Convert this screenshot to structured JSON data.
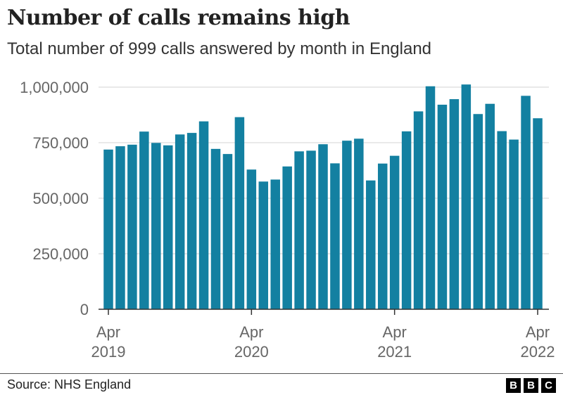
{
  "chart_data": {
    "type": "bar",
    "title": "Number of calls remains high",
    "subtitle": "Total number of 999 calls answered by month in England",
    "xlabel": "",
    "ylabel": "",
    "ylim": [
      0,
      1000000
    ],
    "yticks": [
      0,
      250000,
      500000,
      750000,
      1000000
    ],
    "ytick_labels": [
      "0",
      "250,000",
      "500,000",
      "750,000",
      "1,000,000"
    ],
    "grid": true,
    "bar_color": "#1380a1",
    "xticks": [
      {
        "index": 0,
        "month": "Apr",
        "year": "2019"
      },
      {
        "index": 12,
        "month": "Apr",
        "year": "2020"
      },
      {
        "index": 24,
        "month": "Apr",
        "year": "2021"
      },
      {
        "index": 36,
        "month": "Apr",
        "year": "2022"
      }
    ],
    "categories": [
      "Apr 2019",
      "May 2019",
      "Jun 2019",
      "Jul 2019",
      "Aug 2019",
      "Sep 2019",
      "Oct 2019",
      "Nov 2019",
      "Dec 2019",
      "Jan 2020",
      "Feb 2020",
      "Mar 2020",
      "Apr 2020",
      "May 2020",
      "Jun 2020",
      "Jul 2020",
      "Aug 2020",
      "Sep 2020",
      "Oct 2020",
      "Nov 2020",
      "Dec 2020",
      "Jan 2021",
      "Feb 2021",
      "Mar 2021",
      "Apr 2021",
      "May 2021",
      "Jun 2021",
      "Jul 2021",
      "Aug 2021",
      "Sep 2021",
      "Oct 2021",
      "Nov 2021",
      "Dec 2021",
      "Jan 2022",
      "Feb 2022",
      "Mar 2022",
      "Apr 2022"
    ],
    "values": [
      719000,
      734000,
      741000,
      800000,
      749000,
      738000,
      787000,
      794000,
      846000,
      722000,
      699000,
      865000,
      629000,
      575000,
      584000,
      643000,
      711000,
      714000,
      743000,
      657000,
      759000,
      768000,
      580000,
      656000,
      691000,
      801000,
      891000,
      1004000,
      921000,
      946000,
      1012000,
      879000,
      925000,
      802000,
      764000,
      961000,
      860000
    ]
  },
  "footer": {
    "source": "Source: NHS England",
    "logo": [
      "B",
      "B",
      "C"
    ]
  }
}
